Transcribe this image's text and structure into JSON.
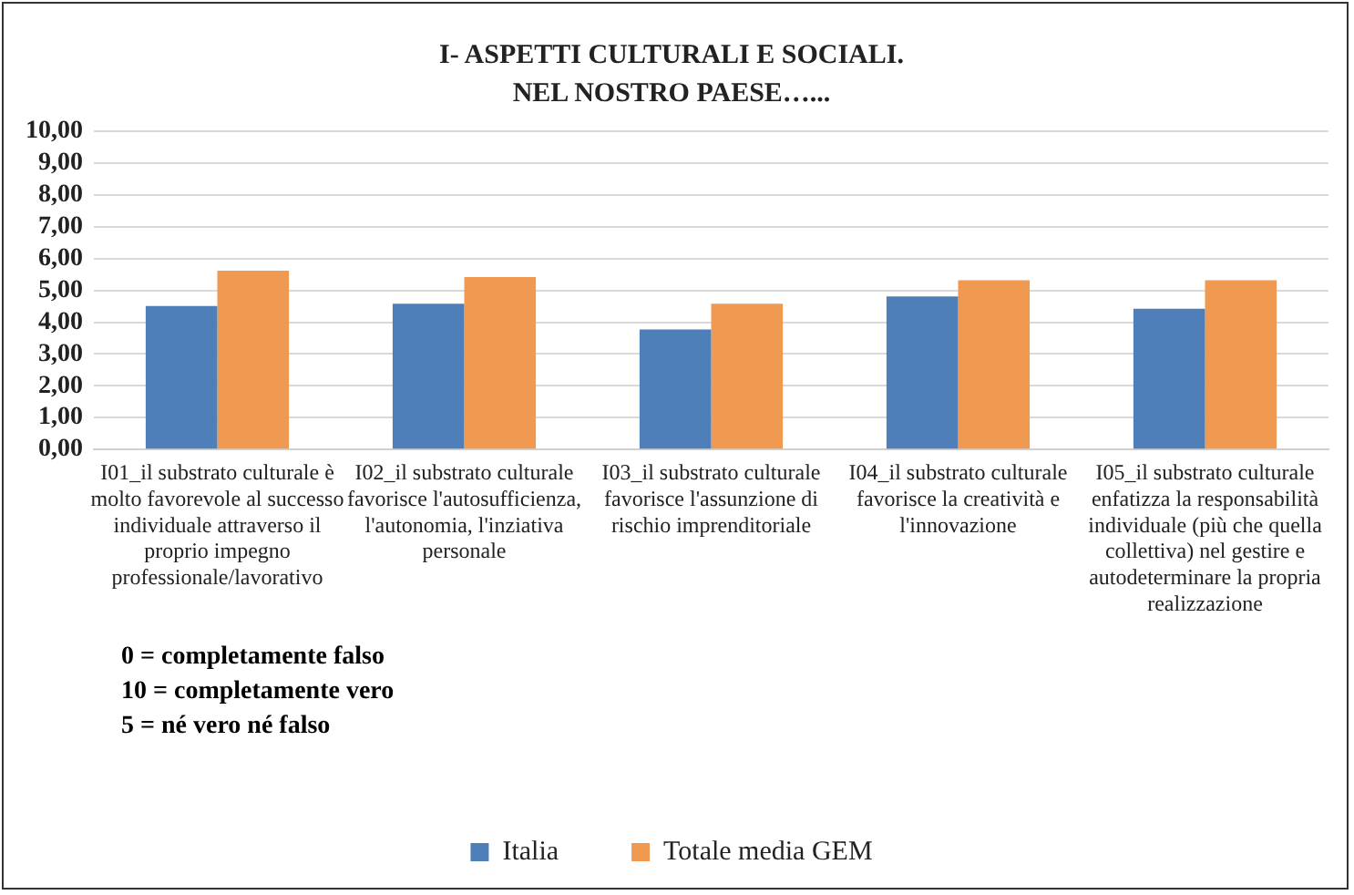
{
  "chart_data": {
    "type": "bar",
    "title": "I- ASPETTI CULTURALI E SOCIALI.\nNEL NOSTRO PAESE…...",
    "categories": [
      "I01_il substrato culturale è molto favorevole al successo individuale attraverso il proprio impegno professionale/lavorativo",
      "I02_il substrato culturale favorisce l'autosufficienza, l'autonomia, l'inziativa personale",
      "I03_il substrato culturale favorisce l'assunzione di rischio imprenditoriale",
      "I04_il substrato culturale favorisce la creatività e l'innovazione",
      "I05_il substrato culturale enfatizza la responsabilità individuale (più che quella collettiva) nel gestire e autodeterminare la propria realizzazione"
    ],
    "series": [
      {
        "name": "Italia",
        "color": "#4f7fb8",
        "values": [
          4.51,
          4.58,
          3.77,
          4.81,
          4.42
        ]
      },
      {
        "name": "Totale media GEM",
        "color": "#ef9a50",
        "values": [
          5.62,
          5.42,
          4.58,
          5.32,
          5.32
        ]
      }
    ],
    "ylim": [
      0,
      10
    ],
    "yticks": [
      {
        "value": 0,
        "label": "0,00"
      },
      {
        "value": 1,
        "label": "1,00"
      },
      {
        "value": 2,
        "label": "2,00"
      },
      {
        "value": 3,
        "label": "3,00"
      },
      {
        "value": 4,
        "label": "4,00"
      },
      {
        "value": 5,
        "label": "5,00"
      },
      {
        "value": 6,
        "label": "6,00"
      },
      {
        "value": 7,
        "label": "7,00"
      },
      {
        "value": 8,
        "label": "8,00"
      },
      {
        "value": 9,
        "label": "9,00"
      },
      {
        "value": 10,
        "label": "10,00"
      }
    ],
    "grid": "y",
    "legend": "bottom",
    "annotations": [
      "0 = completamente falso",
      "10 = completamente vero",
      "5 = né vero né falso"
    ]
  }
}
